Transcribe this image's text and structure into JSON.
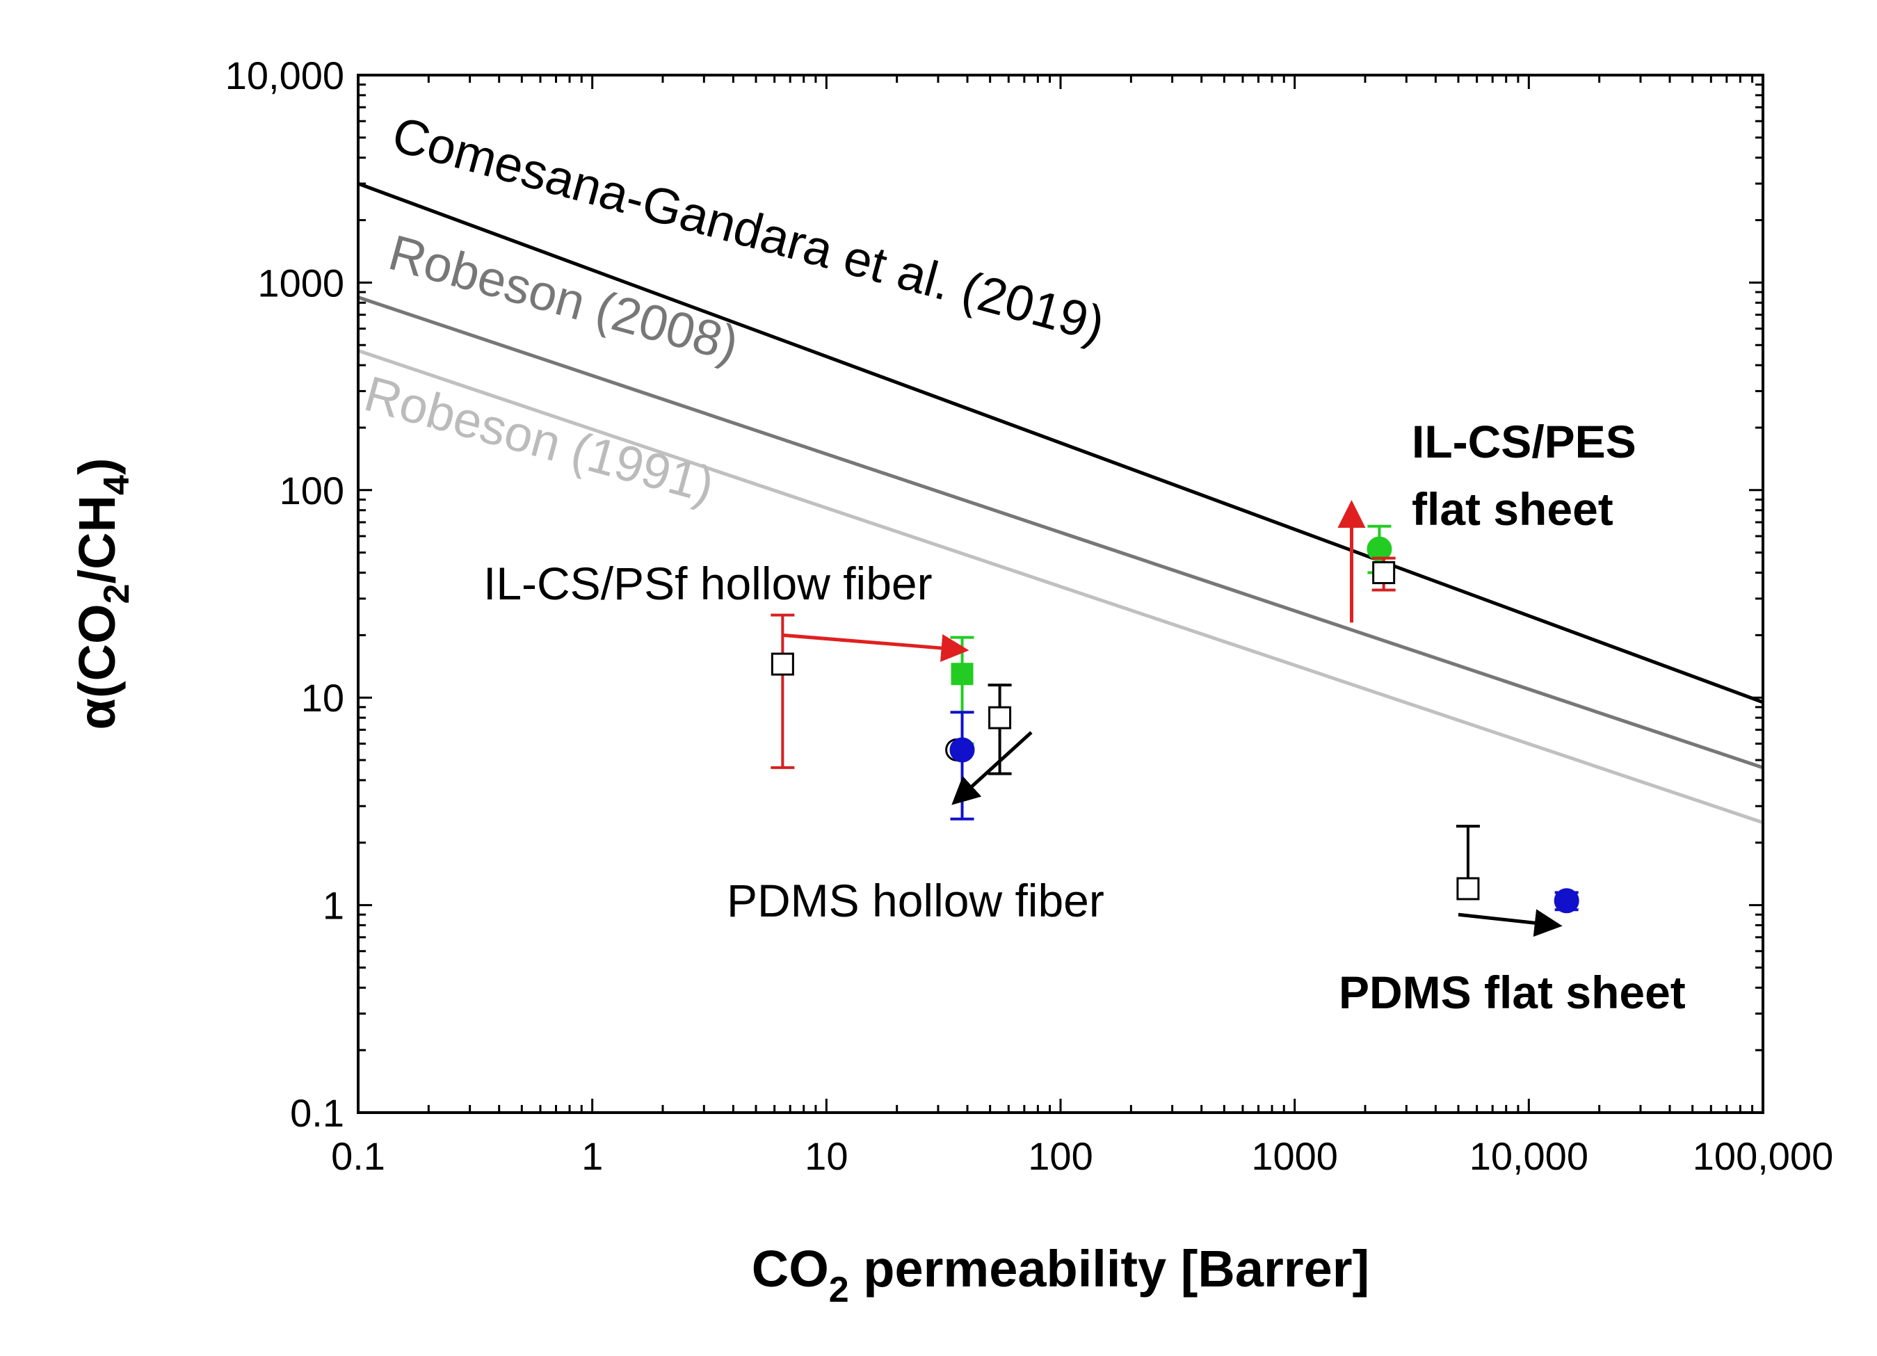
{
  "chart_data": {
    "type": "scatter",
    "title": "",
    "xlabel": {
      "main": "CO",
      "sub": "2",
      "rest": " permeability [Barrer]"
    },
    "ylabel": {
      "pre": "α(CO",
      "sub1": "2",
      "mid": "/CH",
      "sub2": "4",
      "post": ")"
    },
    "xscale": "log",
    "yscale": "log",
    "xlim": [
      0.1,
      100000
    ],
    "ylim": [
      0.1,
      10000
    ],
    "x_ticks": [
      {
        "value": 0.1,
        "label": "0.1"
      },
      {
        "value": 1,
        "label": "1"
      },
      {
        "value": 10,
        "label": "10"
      },
      {
        "value": 100,
        "label": "100"
      },
      {
        "value": 1000,
        "label": "1000"
      },
      {
        "value": 10000,
        "label": "10,000"
      },
      {
        "value": 100000,
        "label": "100,000"
      }
    ],
    "y_ticks": [
      {
        "value": 0.1,
        "label": "0.1"
      },
      {
        "value": 1,
        "label": "1"
      },
      {
        "value": 10,
        "label": "10"
      },
      {
        "value": 100,
        "label": "100"
      },
      {
        "value": 1000,
        "label": "1000"
      },
      {
        "value": 10000,
        "label": "10,000"
      }
    ],
    "upper_bounds": [
      {
        "name": "Comesana-Gandara et al. (2019)",
        "color": "#000000",
        "x": [
          0.1,
          100000
        ],
        "y": [
          3000,
          9.5
        ]
      },
      {
        "name": "Robeson (2008)",
        "color": "#777777",
        "x": [
          0.1,
          100000
        ],
        "y": [
          850,
          4.6
        ]
      },
      {
        "name": "Robeson (1991)",
        "color": "#c0c0c0",
        "x": [
          0.1,
          100000
        ],
        "y": [
          470,
          2.5
        ]
      }
    ],
    "group_labels": [
      {
        "text": "IL-CS/PES",
        "bold": true
      },
      {
        "text": "flat sheet",
        "bold": true
      },
      {
        "text": "IL-CS/PSf hollow fiber",
        "bold": false
      },
      {
        "text": "PDMS hollow fiber",
        "bold": false
      },
      {
        "text": "PDMS flat sheet",
        "bold": true
      }
    ],
    "points": [
      {
        "group": "IL-CS/PSf hollow fiber",
        "marker": "open-square",
        "color": "#d62020",
        "x": 6.5,
        "y": 14.5,
        "err_low": 4.6,
        "err_high": 25
      },
      {
        "group": "IL-CS/PSf hollow fiber",
        "marker": "filled-square",
        "color": "#22cc22",
        "x": 38,
        "y": 13,
        "err_low": 6,
        "err_high": 19.5
      },
      {
        "group": "PDMS hollow fiber",
        "marker": "open-circle",
        "color": "#000000",
        "x": 36,
        "y": 5.6,
        "err_low": null,
        "err_high": null
      },
      {
        "group": "PDMS hollow fiber",
        "marker": "filled-circle",
        "color": "#1111cc",
        "x": 38,
        "y": 5.6,
        "err_low": 2.6,
        "err_high": 8.5
      },
      {
        "group": "PDMS hollow fiber",
        "marker": "open-square",
        "color": "#000000",
        "x": 55,
        "y": 8,
        "err_low": 4.3,
        "err_high": 11.5
      },
      {
        "group": "IL-CS/PES flat sheet",
        "marker": "filled-circle",
        "color": "#22cc22",
        "x": 2300,
        "y": 52,
        "err_low": 40,
        "err_high": 67
      },
      {
        "group": "IL-CS/PES flat sheet",
        "marker": "open-square",
        "color": "#d62020",
        "x": 2400,
        "y": 40,
        "err_low": 33,
        "err_high": 47
      },
      {
        "group": "PDMS flat sheet",
        "marker": "open-square",
        "color": "#000000",
        "x": 5500,
        "y": 1.2,
        "err_low": null,
        "err_high": 2.4
      },
      {
        "group": "PDMS flat sheet",
        "marker": "filled-circle",
        "color": "#1111cc",
        "x": 14500,
        "y": 1.05,
        "err_low": 0.95,
        "err_high": 1.15
      }
    ],
    "arrows": [
      {
        "color": "#e02020",
        "from": [
          6.5,
          20
        ],
        "to": [
          38,
          17
        ]
      },
      {
        "color": "#e02020",
        "from": [
          1750,
          23
        ],
        "to": [
          1750,
          83
        ]
      },
      {
        "color": "#000000",
        "from": [
          75,
          6.8
        ],
        "to": [
          36,
          3.2
        ]
      },
      {
        "color": "#000000",
        "from": [
          5000,
          0.9
        ],
        "to": [
          13000,
          0.8
        ]
      }
    ]
  }
}
